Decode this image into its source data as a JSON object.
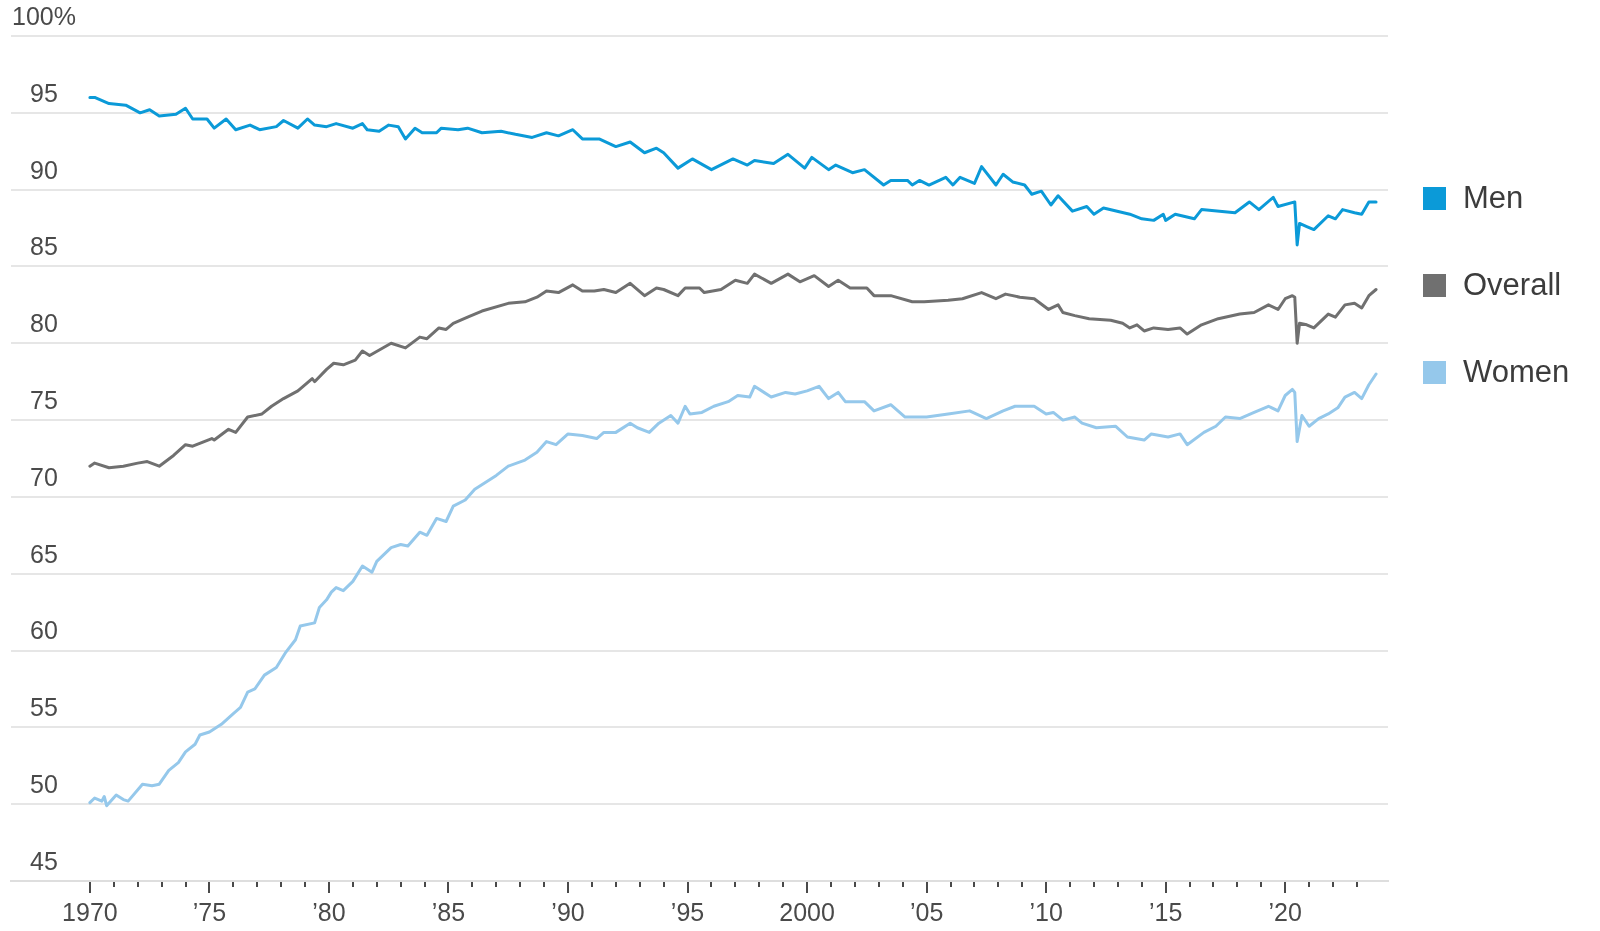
{
  "chart_data": {
    "type": "line",
    "legend": "right",
    "grid": "y",
    "xlim": [
      1966.7,
      2024.3
    ],
    "ylim": [
      45,
      100
    ],
    "xticks": [
      1970,
      {
        "value": 1971,
        "label": null
      },
      {
        "value": 1972,
        "label": null
      },
      {
        "value": 1973,
        "label": null
      },
      {
        "value": 1974,
        "label": null
      },
      {
        "value": 1975,
        "label": "’75"
      },
      {
        "value": 1976,
        "label": null
      },
      {
        "value": 1977,
        "label": null
      },
      {
        "value": 1978,
        "label": null
      },
      {
        "value": 1979,
        "label": null
      },
      {
        "value": 1980,
        "label": "’80"
      },
      {
        "value": 1981,
        "label": null
      },
      {
        "value": 1982,
        "label": null
      },
      {
        "value": 1983,
        "label": null
      },
      {
        "value": 1984,
        "label": null
      },
      {
        "value": 1985,
        "label": "’85"
      },
      {
        "value": 1986,
        "label": null
      },
      {
        "value": 1987,
        "label": null
      },
      {
        "value": 1988,
        "label": null
      },
      {
        "value": 1989,
        "label": null
      },
      {
        "value": 1990,
        "label": "’90"
      },
      {
        "value": 1991,
        "label": null
      },
      {
        "value": 1992,
        "label": null
      },
      {
        "value": 1993,
        "label": null
      },
      {
        "value": 1994,
        "label": null
      },
      {
        "value": 1995,
        "label": "’95"
      },
      {
        "value": 1996,
        "label": null
      },
      {
        "value": 1997,
        "label": null
      },
      {
        "value": 1998,
        "label": null
      },
      {
        "value": 1999,
        "label": null
      },
      2000,
      {
        "value": 2001,
        "label": null
      },
      {
        "value": 2002,
        "label": null
      },
      {
        "value": 2003,
        "label": null
      },
      {
        "value": 2004,
        "label": null
      },
      {
        "value": 2005,
        "label": "’05"
      },
      {
        "value": 2006,
        "label": null
      },
      {
        "value": 2007,
        "label": null
      },
      {
        "value": 2008,
        "label": null
      },
      {
        "value": 2009,
        "label": null
      },
      {
        "value": 2010,
        "label": "’10"
      },
      {
        "value": 2011,
        "label": null
      },
      {
        "value": 2012,
        "label": null
      },
      {
        "value": 2013,
        "label": null
      },
      {
        "value": 2014,
        "label": null
      },
      {
        "value": 2015,
        "label": "’15"
      },
      {
        "value": 2016,
        "label": null
      },
      {
        "value": 2017,
        "label": null
      },
      {
        "value": 2018,
        "label": null
      },
      {
        "value": 2019,
        "label": null
      },
      {
        "value": 2020,
        "label": "’20"
      },
      {
        "value": 2021,
        "label": null
      },
      {
        "value": 2022,
        "label": null
      },
      {
        "value": 2023,
        "label": null
      }
    ],
    "yticks": [
      45,
      50,
      55,
      60,
      65,
      70,
      75,
      80,
      85,
      90,
      95,
      {
        "value": 100,
        "label": "100%"
      }
    ],
    "series": [
      {
        "name": "Men",
        "color": "#0b9ad8",
        "x": [
          1970.0,
          1970.2,
          1970.8,
          1971.5,
          1972.1,
          1972.5,
          1972.9,
          1973.6,
          1974.0,
          1974.3,
          1974.9,
          1975.2,
          1975.7,
          1976.1,
          1976.7,
          1977.1,
          1977.8,
          1978.1,
          1978.7,
          1979.1,
          1979.4,
          1979.9,
          1980.3,
          1981.0,
          1981.4,
          1981.6,
          1982.1,
          1982.5,
          1982.9,
          1983.2,
          1983.6,
          1983.9,
          1984.5,
          1984.7,
          1985.4,
          1985.8,
          1986.4,
          1987.2,
          1987.8,
          1988.5,
          1989.1,
          1989.6,
          1990.2,
          1990.6,
          1991.3,
          1992.0,
          1992.6,
          1993.2,
          1993.7,
          1994.0,
          1994.6,
          1995.2,
          1996.0,
          1996.9,
          1997.5,
          1997.8,
          1998.6,
          1999.2,
          1999.9,
          2000.2,
          2000.9,
          2001.2,
          2001.9,
          2002.4,
          2003.2,
          2003.5,
          2004.2,
          2004.4,
          2004.7,
          2005.1,
          2005.8,
          2006.1,
          2006.4,
          2007.0,
          2007.3,
          2007.9,
          2008.2,
          2008.6,
          2009.1,
          2009.4,
          2009.8,
          2010.2,
          2010.5,
          2011.1,
          2011.7,
          2012.0,
          2012.4,
          2013.5,
          2014.0,
          2014.5,
          2014.9,
          2015.0,
          2015.4,
          2016.2,
          2016.5,
          2017.9,
          2018.5,
          2018.9,
          2019.5,
          2019.7,
          2020.4,
          2020.5,
          2020.6,
          2020.9,
          2021.2,
          2021.8,
          2022.1,
          2022.4,
          2022.9,
          2023.2,
          2023.5,
          2023.8
        ],
        "values": [
          96.0,
          96.0,
          95.6,
          95.5,
          95.0,
          95.2,
          94.8,
          94.9,
          95.3,
          94.6,
          94.6,
          94.0,
          94.6,
          93.9,
          94.2,
          93.9,
          94.1,
          94.5,
          94.0,
          94.6,
          94.2,
          94.1,
          94.3,
          94.0,
          94.3,
          93.9,
          93.8,
          94.2,
          94.1,
          93.3,
          94.0,
          93.7,
          93.7,
          94.0,
          93.9,
          94.0,
          93.7,
          93.8,
          93.6,
          93.4,
          93.7,
          93.5,
          93.9,
          93.3,
          93.3,
          92.8,
          93.1,
          92.4,
          92.7,
          92.4,
          91.4,
          92.0,
          91.3,
          92.0,
          91.6,
          91.9,
          91.7,
          92.3,
          91.4,
          92.1,
          91.3,
          91.6,
          91.1,
          91.3,
          90.3,
          90.6,
          90.6,
          90.3,
          90.6,
          90.3,
          90.8,
          90.3,
          90.8,
          90.4,
          91.5,
          90.3,
          91.0,
          90.5,
          90.3,
          89.7,
          89.9,
          89.0,
          89.6,
          88.6,
          88.9,
          88.4,
          88.8,
          88.4,
          88.1,
          88.0,
          88.4,
          88.0,
          88.4,
          88.1,
          88.7,
          88.5,
          89.2,
          88.7,
          89.5,
          88.9,
          89.2,
          86.4,
          87.8,
          87.6,
          87.4,
          88.3,
          88.1,
          88.7,
          88.5,
          88.4,
          89.2,
          89.2
        ]
      },
      {
        "name": "Overall",
        "color": "#707070",
        "x": [
          1970.0,
          1970.2,
          1970.8,
          1971.4,
          1972.0,
          1972.4,
          1972.9,
          1973.5,
          1974.0,
          1974.3,
          1975.1,
          1975.2,
          1975.8,
          1976.1,
          1976.6,
          1977.2,
          1977.6,
          1978.1,
          1978.7,
          1979.3,
          1979.4,
          1979.9,
          1980.2,
          1980.6,
          1981.1,
          1981.4,
          1981.7,
          1982.6,
          1983.2,
          1983.8,
          1984.1,
          1984.6,
          1984.9,
          1985.2,
          1985.8,
          1986.4,
          1987.5,
          1988.2,
          1988.7,
          1989.1,
          1989.6,
          1990.2,
          1990.6,
          1991.1,
          1991.5,
          1992.0,
          1992.6,
          1993.2,
          1993.7,
          1994.0,
          1994.6,
          1994.9,
          1995.5,
          1995.7,
          1996.4,
          1997.0,
          1997.5,
          1997.8,
          1998.5,
          1999.2,
          1999.7,
          2000.3,
          2000.9,
          2001.3,
          2001.8,
          2002.5,
          2002.8,
          2003.5,
          2004.4,
          2004.9,
          2005.9,
          2006.5,
          2007.3,
          2007.9,
          2008.3,
          2008.9,
          2009.5,
          2010.1,
          2010.5,
          2010.7,
          2011.2,
          2011.8,
          2012.7,
          2013.2,
          2013.5,
          2013.8,
          2014.1,
          2014.5,
          2015.1,
          2015.6,
          2015.9,
          2016.5,
          2017.2,
          2018.1,
          2018.7,
          2019.3,
          2019.7,
          2020.0,
          2020.3,
          2020.4,
          2020.5,
          2020.6,
          2020.9,
          2021.2,
          2021.8,
          2022.1,
          2022.5,
          2022.9,
          2023.2,
          2023.5,
          2023.8
        ],
        "values": [
          72.0,
          72.2,
          71.9,
          72.0,
          72.2,
          72.3,
          72.0,
          72.7,
          73.4,
          73.3,
          73.8,
          73.7,
          74.4,
          74.2,
          75.2,
          75.4,
          75.9,
          76.4,
          76.9,
          77.7,
          77.5,
          78.3,
          78.7,
          78.6,
          78.9,
          79.5,
          79.2,
          80.0,
          79.7,
          80.4,
          80.3,
          81.0,
          80.9,
          81.3,
          81.7,
          82.1,
          82.6,
          82.7,
          83.0,
          83.4,
          83.3,
          83.8,
          83.4,
          83.4,
          83.5,
          83.3,
          83.9,
          83.1,
          83.6,
          83.5,
          83.1,
          83.6,
          83.6,
          83.3,
          83.5,
          84.1,
          83.9,
          84.5,
          83.9,
          84.5,
          84.0,
          84.4,
          83.7,
          84.1,
          83.6,
          83.6,
          83.1,
          83.1,
          82.7,
          82.7,
          82.8,
          82.9,
          83.3,
          82.9,
          83.2,
          83.0,
          82.9,
          82.2,
          82.5,
          82.0,
          81.8,
          81.6,
          81.5,
          81.3,
          81.0,
          81.2,
          80.8,
          81.0,
          80.9,
          81.0,
          80.6,
          81.2,
          81.6,
          81.9,
          82.0,
          82.5,
          82.2,
          82.9,
          83.1,
          83.0,
          80.0,
          81.3,
          81.2,
          81.0,
          81.9,
          81.7,
          82.5,
          82.6,
          82.3,
          83.1,
          83.5
        ]
      },
      {
        "name": "Women",
        "color": "#95c8eb",
        "x": [
          1970.0,
          1970.2,
          1970.5,
          1970.6,
          1970.7,
          1971.1,
          1971.4,
          1971.6,
          1972.2,
          1972.6,
          1972.9,
          1973.3,
          1973.7,
          1974.0,
          1974.4,
          1974.6,
          1975.0,
          1975.5,
          1976.0,
          1976.3,
          1976.6,
          1976.9,
          1977.3,
          1977.8,
          1978.2,
          1978.6,
          1978.8,
          1979.4,
          1979.6,
          1979.9,
          1980.1,
          1980.3,
          1980.6,
          1981.0,
          1981.4,
          1981.8,
          1982.0,
          1982.6,
          1983.0,
          1983.3,
          1983.8,
          1984.1,
          1984.5,
          1984.9,
          1985.2,
          1985.7,
          1986.1,
          1987.0,
          1987.5,
          1988.2,
          1988.7,
          1989.1,
          1989.5,
          1990.0,
          1990.6,
          1991.2,
          1991.5,
          1992.0,
          1992.6,
          1992.9,
          1993.4,
          1993.8,
          1994.3,
          1994.6,
          1994.9,
          1995.1,
          1995.6,
          1996.1,
          1996.7,
          1997.1,
          1997.6,
          1997.8,
          1998.5,
          1999.1,
          1999.5,
          2000.0,
          2000.5,
          2000.9,
          2001.3,
          2001.6,
          2002.4,
          2002.8,
          2003.5,
          2004.1,
          2005.0,
          2005.9,
          2006.8,
          2007.5,
          2008.2,
          2008.7,
          2009.5,
          2010.0,
          2010.3,
          2010.7,
          2011.2,
          2011.5,
          2012.1,
          2012.9,
          2013.4,
          2014.1,
          2014.4,
          2015.1,
          2015.6,
          2015.9,
          2016.6,
          2017.1,
          2017.5,
          2018.1,
          2018.7,
          2019.3,
          2019.7,
          2020.0,
          2020.3,
          2020.4,
          2020.5,
          2020.7,
          2021.0,
          2021.4,
          2021.8,
          2022.2,
          2022.5,
          2022.9,
          2023.2,
          2023.5,
          2023.8
        ],
        "values": [
          50.1,
          50.4,
          50.2,
          50.5,
          49.9,
          50.6,
          50.3,
          50.2,
          51.3,
          51.2,
          51.3,
          52.2,
          52.7,
          53.4,
          53.9,
          54.5,
          54.7,
          55.2,
          55.9,
          56.3,
          57.3,
          57.5,
          58.4,
          58.9,
          59.9,
          60.7,
          61.6,
          61.8,
          62.8,
          63.3,
          63.8,
          64.1,
          63.9,
          64.5,
          65.5,
          65.1,
          65.8,
          66.7,
          66.9,
          66.8,
          67.7,
          67.5,
          68.6,
          68.4,
          69.4,
          69.8,
          70.5,
          71.4,
          72.0,
          72.4,
          72.9,
          73.6,
          73.4,
          74.1,
          74.0,
          73.8,
          74.2,
          74.2,
          74.8,
          74.5,
          74.2,
          74.8,
          75.3,
          74.8,
          75.9,
          75.4,
          75.5,
          75.9,
          76.2,
          76.6,
          76.5,
          77.2,
          76.5,
          76.8,
          76.7,
          76.9,
          77.2,
          76.4,
          76.8,
          76.2,
          76.2,
          75.6,
          76.0,
          75.2,
          75.2,
          75.4,
          75.6,
          75.1,
          75.6,
          75.9,
          75.9,
          75.4,
          75.5,
          75.0,
          75.2,
          74.8,
          74.5,
          74.6,
          73.9,
          73.7,
          74.1,
          73.9,
          74.1,
          73.4,
          74.2,
          74.6,
          75.2,
          75.1,
          75.5,
          75.9,
          75.6,
          76.6,
          77.0,
          76.8,
          73.6,
          75.3,
          74.6,
          75.1,
          75.4,
          75.8,
          76.5,
          76.8,
          76.4,
          77.3,
          78.0
        ]
      }
    ]
  }
}
